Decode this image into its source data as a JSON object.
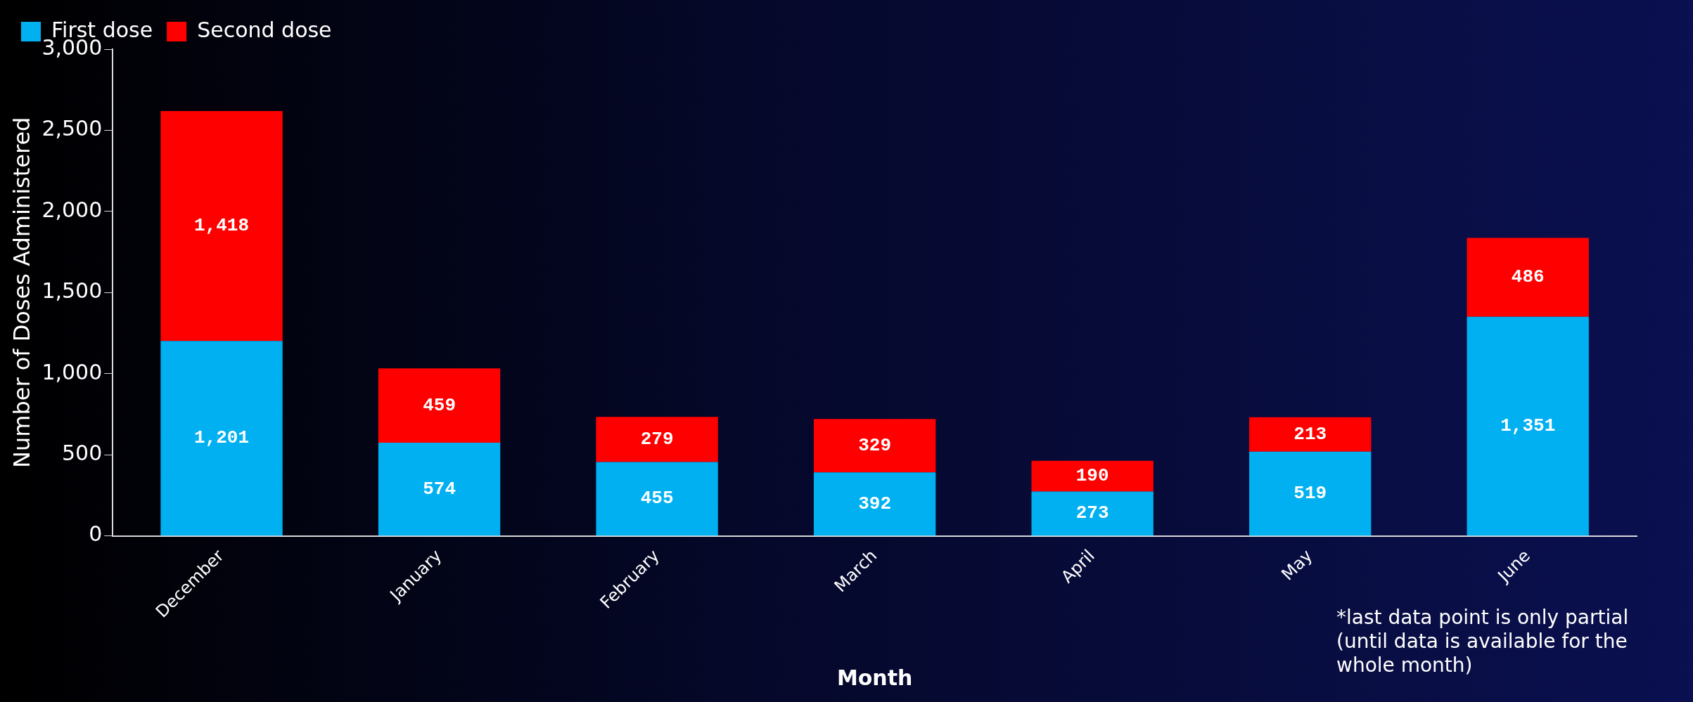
{
  "chart_data": {
    "type": "bar",
    "stacked": true,
    "xlabel": "Month",
    "ylabel": "Number of Doses Administered",
    "categories": [
      "December",
      "January",
      "February",
      "March",
      "April",
      "May",
      "June"
    ],
    "series": [
      {
        "name": "First dose",
        "color": "#00b0f0",
        "values": [
          1201,
          574,
          455,
          392,
          273,
          519,
          1351
        ],
        "value_labels": [
          "1,201",
          "574",
          "455",
          "392",
          "273",
          "519",
          "1,351"
        ]
      },
      {
        "name": "Second dose",
        "color": "#ff0000",
        "values": [
          1418,
          459,
          279,
          329,
          190,
          213,
          486
        ],
        "value_labels": [
          "1,418",
          "459",
          "279",
          "329",
          "190",
          "213",
          "486"
        ]
      }
    ],
    "ylim": [
      0,
      3000
    ],
    "yticks": [
      {
        "value": 0,
        "label": "0"
      },
      {
        "value": 500,
        "label": "500"
      },
      {
        "value": 1000,
        "label": "1,000"
      },
      {
        "value": 1500,
        "label": "1,500"
      },
      {
        "value": 2000,
        "label": "2,000"
      },
      {
        "value": 2500,
        "label": "2,500"
      },
      {
        "value": 3000,
        "label": "3,000"
      }
    ],
    "grid": false,
    "legend": "top left",
    "annotations": [
      "*last data point is only partial (until data is available for the whole month)"
    ]
  }
}
